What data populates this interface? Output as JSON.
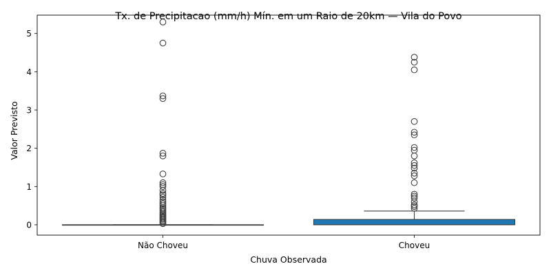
{
  "chart_data": {
    "type": "box",
    "title": "Tx. de Precipitacao (mm/h) Mín. em um Raio de 20km — Vila do Povo",
    "xlabel": "Chuva Observada",
    "ylabel": "Valor Previsto",
    "ylim": [
      -0.27,
      5.48
    ],
    "yticks": [
      0,
      1,
      2,
      3,
      4,
      5
    ],
    "grid": false,
    "categories": [
      "Não Choveu",
      "Choveu"
    ],
    "boxes": [
      {
        "category": "Não Choveu",
        "color": "#1f77b4",
        "min": 0,
        "q1": 0,
        "median": 0,
        "q3": 0,
        "max": 0,
        "outliers": [
          5.3,
          4.75,
          3.37,
          3.3,
          1.87,
          1.8,
          1.33,
          1.1,
          1.05,
          1.0,
          0.9,
          0.82,
          0.78,
          0.72,
          0.65,
          0.6,
          0.55,
          0.5,
          0.45,
          0.42,
          0.38,
          0.34,
          0.3,
          0.27,
          0.24,
          0.21,
          0.18,
          0.15,
          0.12,
          0.09,
          0.06,
          0.03
        ]
      },
      {
        "category": "Choveu",
        "color": "#1f77b4",
        "min": 0,
        "q1": 0,
        "median": 0,
        "q3": 0.14,
        "max": 0.36,
        "outliers": [
          4.38,
          4.25,
          4.05,
          2.7,
          2.42,
          2.35,
          2.02,
          1.95,
          1.8,
          1.62,
          1.55,
          1.48,
          1.35,
          1.28,
          1.1,
          0.8,
          0.75,
          0.7,
          0.6,
          0.52,
          0.48,
          0.43
        ]
      }
    ]
  }
}
